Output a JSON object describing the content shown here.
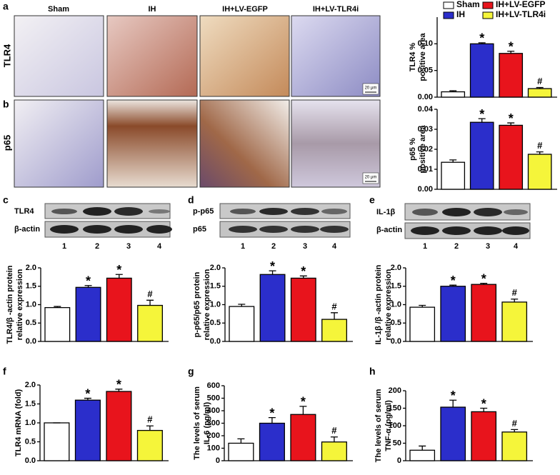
{
  "panel_labels": [
    "a",
    "b",
    "c",
    "d",
    "e",
    "f",
    "g",
    "h"
  ],
  "legend": [
    {
      "name": "Sham",
      "color": "#ffffff"
    },
    {
      "name": "IH+LV-EGFP",
      "color": "#e8141c"
    },
    {
      "name": "IH",
      "color": "#2b2ecb"
    },
    {
      "name": "IH+LV-TLR4i",
      "color": "#f5f53a"
    }
  ],
  "micrographs": {
    "columns": [
      "Sham",
      "IH",
      "IH+LV-EGFP",
      "IH+LV-TLR4i"
    ],
    "rows": [
      "TLR4",
      "p65"
    ],
    "scale_bar": "20 μm"
  },
  "blots": [
    {
      "rows": [
        "TLR4",
        "β-actin"
      ],
      "lanes": [
        "1",
        "2",
        "3",
        "4"
      ]
    },
    {
      "rows": [
        "p-p65",
        "p65"
      ],
      "lanes": [
        "1",
        "2",
        "3",
        "4"
      ]
    },
    {
      "rows": [
        "IL-1β",
        "β-actin"
      ],
      "lanes": [
        "1",
        "2",
        "3",
        "4"
      ]
    }
  ],
  "chart_data": [
    {
      "type": "bar",
      "ylabel": [
        "TLR4 %",
        "positive area"
      ],
      "ylim": [
        0,
        0.15
      ],
      "yticks": [
        {
          "value": 0,
          "label": "0.00"
        },
        {
          "value": 0.05,
          "label": "0.05"
        },
        {
          "value": 0.1,
          "label": "0.10"
        }
      ],
      "values": [
        0.01,
        0.1,
        0.082,
        0.016
      ],
      "errors": [
        0.002,
        0.002,
        0.004,
        0.002
      ],
      "annotations": [
        null,
        "*",
        "*",
        "#"
      ]
    },
    {
      "type": "bar",
      "ylabel": [
        "p65 %",
        "positive area"
      ],
      "ylim": [
        0,
        0.04
      ],
      "yticks": [
        {
          "value": 0,
          "label": "0.00"
        },
        {
          "value": 0.01,
          "label": "0.01"
        },
        {
          "value": 0.02,
          "label": "0.02"
        },
        {
          "value": 0.03,
          "label": "0.03"
        },
        {
          "value": 0.04,
          "label": "0.04"
        }
      ],
      "values": [
        0.0135,
        0.0335,
        0.032,
        0.0175
      ],
      "errors": [
        0.0012,
        0.0018,
        0.0012,
        0.0012
      ],
      "annotations": [
        null,
        "*",
        "*",
        "#"
      ]
    },
    {
      "type": "bar",
      "ylabel": [
        "TLR4/β -actin protein",
        "relative expression"
      ],
      "ylim": [
        0,
        2
      ],
      "yticks": [
        {
          "value": 0,
          "label": "0.0"
        },
        {
          "value": 0.5,
          "label": "0.5"
        },
        {
          "value": 1,
          "label": "1.0"
        },
        {
          "value": 1.5,
          "label": "1.5"
        },
        {
          "value": 2,
          "label": "2.0"
        }
      ],
      "values": [
        0.92,
        1.47,
        1.72,
        0.98
      ],
      "errors": [
        0.03,
        0.05,
        0.1,
        0.14
      ],
      "annotations": [
        null,
        "*",
        "*",
        "#"
      ]
    },
    {
      "type": "bar",
      "ylabel": [
        "p-p65/p65 protein",
        "relative expression"
      ],
      "ylim": [
        0,
        2
      ],
      "yticks": [
        {
          "value": 0,
          "label": "0.0"
        },
        {
          "value": 0.5,
          "label": "0.5"
        },
        {
          "value": 1,
          "label": "1.0"
        },
        {
          "value": 1.5,
          "label": "1.5"
        },
        {
          "value": 2,
          "label": "2.0"
        }
      ],
      "values": [
        0.95,
        1.82,
        1.72,
        0.6
      ],
      "errors": [
        0.06,
        0.1,
        0.06,
        0.18
      ],
      "annotations": [
        null,
        "*",
        "*",
        "#"
      ]
    },
    {
      "type": "bar",
      "ylabel": [
        "IL-1β /β -actin protein",
        "relative expression"
      ],
      "ylim": [
        0,
        2
      ],
      "yticks": [
        {
          "value": 0,
          "label": "0.0"
        },
        {
          "value": 0.5,
          "label": "0.5"
        },
        {
          "value": 1,
          "label": "1.0"
        },
        {
          "value": 1.5,
          "label": "1.5"
        },
        {
          "value": 2,
          "label": "2.0"
        }
      ],
      "values": [
        0.93,
        1.5,
        1.55,
        1.07
      ],
      "errors": [
        0.05,
        0.03,
        0.03,
        0.08
      ],
      "annotations": [
        null,
        "*",
        "*",
        "#"
      ]
    },
    {
      "type": "bar",
      "ylabel": [
        "TLR4 mRNA (fold)"
      ],
      "ylim": [
        0,
        2
      ],
      "yticks": [
        {
          "value": 0,
          "label": "0.0"
        },
        {
          "value": 0.5,
          "label": "0.5"
        },
        {
          "value": 1,
          "label": "1.0"
        },
        {
          "value": 1.5,
          "label": "1.5"
        },
        {
          "value": 2,
          "label": "2.0"
        }
      ],
      "values": [
        1.0,
        1.6,
        1.83,
        0.8
      ],
      "errors": [
        0,
        0.05,
        0.06,
        0.12
      ],
      "annotations": [
        null,
        "*",
        "*",
        "#"
      ]
    },
    {
      "type": "bar",
      "ylabel": [
        "The levels of serum",
        "IL-6   (pg/ml)"
      ],
      "ylim": [
        0,
        600
      ],
      "yticks": [
        0,
        100,
        200,
        300,
        400,
        500,
        600
      ],
      "values": [
        140,
        300,
        370,
        150
      ],
      "errors": [
        35,
        45,
        65,
        40
      ],
      "annotations": [
        null,
        "*",
        "*",
        "#"
      ]
    },
    {
      "type": "bar",
      "ylabel": [
        "The levels of serum",
        "TNF-α   (pg/ml)"
      ],
      "ylim": [
        0,
        200
      ],
      "yticks": [
        0,
        50,
        100,
        150,
        200
      ],
      "values": [
        30,
        153,
        140,
        82
      ],
      "errors": [
        12,
        20,
        10,
        7
      ],
      "annotations": [
        null,
        "*",
        "*",
        "#"
      ]
    }
  ]
}
